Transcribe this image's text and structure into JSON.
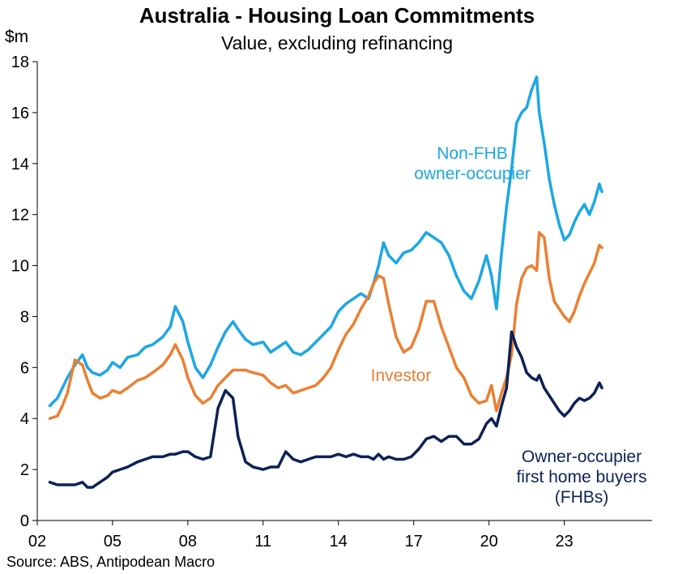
{
  "title": "Australia - Housing Loan Commitments",
  "subtitle": "Value, excluding refinancing",
  "unit_label": "$m",
  "source": "Source: ABS, Antipodean Macro",
  "chart_data": {
    "type": "line",
    "title": "Australia - Housing Loan Commitments",
    "subtitle": "Value, excluding refinancing",
    "ylabel": "$m",
    "ylim": [
      0,
      18
    ],
    "yticks": [
      "0",
      "2",
      "4",
      "6",
      "8",
      "10",
      "12",
      "14",
      "16",
      "18"
    ],
    "xlim": [
      2002.0,
      2026.5
    ],
    "xticks": [
      {
        "x": 2002,
        "label": "02"
      },
      {
        "x": 2005,
        "label": "05"
      },
      {
        "x": 2008,
        "label": "08"
      },
      {
        "x": 2011,
        "label": "11"
      },
      {
        "x": 2014,
        "label": "14"
      },
      {
        "x": 2017,
        "label": "17"
      },
      {
        "x": 2020,
        "label": "20"
      },
      {
        "x": 2023,
        "label": "23"
      }
    ],
    "grid": false,
    "legend": "none",
    "series": [
      {
        "name": "Non-FHB owner-occupier",
        "label_lines": [
          "Non-FHB",
          "owner-occupier"
        ],
        "color": "#1ca7e4",
        "x": [
          2002.5,
          2002.8,
          2003.0,
          2003.2,
          2003.5,
          2003.8,
          2004.0,
          2004.2,
          2004.5,
          2004.8,
          2005.0,
          2005.3,
          2005.6,
          2006.0,
          2006.3,
          2006.6,
          2007.0,
          2007.3,
          2007.5,
          2007.8,
          2008.0,
          2008.3,
          2008.6,
          2008.9,
          2009.2,
          2009.5,
          2009.8,
          2010.0,
          2010.3,
          2010.6,
          2011.0,
          2011.3,
          2011.6,
          2011.9,
          2012.2,
          2012.5,
          2012.8,
          2013.1,
          2013.4,
          2013.7,
          2014.0,
          2014.3,
          2014.6,
          2014.9,
          2015.2,
          2015.4,
          2015.6,
          2015.8,
          2016.0,
          2016.3,
          2016.6,
          2016.9,
          2017.2,
          2017.5,
          2017.8,
          2018.1,
          2018.4,
          2018.7,
          2019.0,
          2019.3,
          2019.6,
          2019.9,
          2020.1,
          2020.3,
          2020.5,
          2020.7,
          2020.9,
          2021.1,
          2021.3,
          2021.5,
          2021.7,
          2021.9,
          2022.0,
          2022.2,
          2022.4,
          2022.6,
          2022.8,
          2023.0,
          2023.2,
          2023.4,
          2023.6,
          2023.8,
          2024.0,
          2024.2,
          2024.4,
          2024.5
        ],
        "y": [
          4.5,
          4.8,
          5.2,
          5.6,
          6.1,
          6.5,
          6.0,
          5.8,
          5.7,
          5.9,
          6.2,
          6.0,
          6.4,
          6.5,
          6.8,
          6.9,
          7.2,
          7.6,
          8.4,
          7.8,
          7.0,
          6.0,
          5.6,
          6.1,
          6.8,
          7.4,
          7.8,
          7.5,
          7.1,
          6.9,
          7.0,
          6.6,
          6.8,
          7.0,
          6.6,
          6.5,
          6.7,
          7.0,
          7.3,
          7.6,
          8.2,
          8.5,
          8.7,
          8.9,
          8.7,
          9.3,
          10.0,
          10.9,
          10.4,
          10.1,
          10.5,
          10.6,
          10.9,
          11.3,
          11.1,
          10.9,
          10.4,
          9.6,
          9.0,
          8.7,
          9.4,
          10.4,
          9.6,
          8.3,
          10.5,
          12.3,
          13.8,
          15.6,
          16.0,
          16.2,
          16.9,
          17.4,
          16.0,
          14.8,
          13.4,
          12.4,
          11.6,
          11.0,
          11.2,
          11.7,
          12.1,
          12.4,
          12.0,
          12.5,
          13.2,
          12.9
        ]
      },
      {
        "name": "Investor",
        "label_lines": [
          "Investor"
        ],
        "color": "#ec7f31",
        "x": [
          2002.5,
          2002.8,
          2003.0,
          2003.2,
          2003.5,
          2003.8,
          2004.0,
          2004.2,
          2004.5,
          2004.8,
          2005.0,
          2005.3,
          2005.6,
          2006.0,
          2006.3,
          2006.6,
          2007.0,
          2007.3,
          2007.5,
          2007.8,
          2008.0,
          2008.3,
          2008.6,
          2008.9,
          2009.2,
          2009.5,
          2009.8,
          2010.0,
          2010.3,
          2010.6,
          2011.0,
          2011.3,
          2011.6,
          2011.9,
          2012.2,
          2012.5,
          2012.8,
          2013.1,
          2013.4,
          2013.7,
          2014.0,
          2014.3,
          2014.6,
          2014.9,
          2015.2,
          2015.4,
          2015.6,
          2015.8,
          2016.0,
          2016.3,
          2016.6,
          2016.9,
          2017.2,
          2017.5,
          2017.8,
          2018.1,
          2018.4,
          2018.7,
          2019.0,
          2019.3,
          2019.6,
          2019.9,
          2020.1,
          2020.3,
          2020.5,
          2020.7,
          2020.9,
          2021.1,
          2021.3,
          2021.5,
          2021.7,
          2021.9,
          2022.0,
          2022.2,
          2022.4,
          2022.6,
          2022.8,
          2023.0,
          2023.2,
          2023.4,
          2023.6,
          2023.8,
          2024.0,
          2024.2,
          2024.4,
          2024.5
        ],
        "y": [
          4.0,
          4.1,
          4.5,
          5.0,
          6.3,
          6.1,
          5.5,
          5.0,
          4.8,
          4.9,
          5.1,
          5.0,
          5.2,
          5.5,
          5.6,
          5.8,
          6.1,
          6.5,
          6.9,
          6.3,
          5.6,
          4.9,
          4.6,
          4.8,
          5.3,
          5.6,
          5.9,
          5.9,
          5.9,
          5.8,
          5.7,
          5.4,
          5.2,
          5.3,
          5.0,
          5.1,
          5.2,
          5.3,
          5.6,
          6.0,
          6.7,
          7.3,
          7.7,
          8.3,
          8.8,
          9.3,
          9.6,
          9.5,
          8.5,
          7.2,
          6.6,
          6.8,
          7.5,
          8.6,
          8.6,
          7.6,
          6.8,
          6.0,
          5.6,
          4.9,
          4.6,
          4.7,
          5.3,
          4.3,
          5.0,
          5.6,
          6.5,
          8.5,
          9.5,
          9.9,
          10.0,
          9.8,
          11.3,
          11.1,
          9.5,
          8.6,
          8.3,
          8.0,
          7.8,
          8.2,
          8.8,
          9.3,
          9.7,
          10.1,
          10.8,
          10.7
        ]
      },
      {
        "name": "Owner-occupier first home buyers (FHBs)",
        "label_lines": [
          "Owner-occupier",
          "first home buyers",
          "(FHBs)"
        ],
        "color": "#0c2157",
        "x": [
          2002.5,
          2002.8,
          2003.0,
          2003.2,
          2003.5,
          2003.8,
          2004.0,
          2004.2,
          2004.5,
          2004.8,
          2005.0,
          2005.3,
          2005.6,
          2006.0,
          2006.3,
          2006.6,
          2007.0,
          2007.3,
          2007.5,
          2007.8,
          2008.0,
          2008.3,
          2008.6,
          2008.9,
          2009.2,
          2009.5,
          2009.8,
          2010.0,
          2010.3,
          2010.6,
          2011.0,
          2011.3,
          2011.6,
          2011.9,
          2012.2,
          2012.5,
          2012.8,
          2013.1,
          2013.4,
          2013.7,
          2014.0,
          2014.3,
          2014.6,
          2014.9,
          2015.2,
          2015.4,
          2015.6,
          2015.8,
          2016.0,
          2016.3,
          2016.6,
          2016.9,
          2017.2,
          2017.5,
          2017.8,
          2018.1,
          2018.4,
          2018.7,
          2019.0,
          2019.3,
          2019.6,
          2019.9,
          2020.1,
          2020.3,
          2020.5,
          2020.7,
          2020.9,
          2021.1,
          2021.3,
          2021.5,
          2021.7,
          2021.9,
          2022.0,
          2022.2,
          2022.4,
          2022.6,
          2022.8,
          2023.0,
          2023.2,
          2023.4,
          2023.6,
          2023.8,
          2024.0,
          2024.2,
          2024.4,
          2024.5
        ],
        "y": [
          1.5,
          1.4,
          1.4,
          1.4,
          1.4,
          1.5,
          1.3,
          1.3,
          1.5,
          1.7,
          1.9,
          2.0,
          2.1,
          2.3,
          2.4,
          2.5,
          2.5,
          2.6,
          2.6,
          2.7,
          2.7,
          2.5,
          2.4,
          2.5,
          4.4,
          5.1,
          4.8,
          3.3,
          2.3,
          2.1,
          2.0,
          2.1,
          2.1,
          2.7,
          2.4,
          2.3,
          2.4,
          2.5,
          2.5,
          2.5,
          2.6,
          2.5,
          2.6,
          2.5,
          2.5,
          2.4,
          2.6,
          2.4,
          2.5,
          2.4,
          2.4,
          2.5,
          2.8,
          3.2,
          3.3,
          3.1,
          3.3,
          3.3,
          3.0,
          3.0,
          3.2,
          3.8,
          4.0,
          3.7,
          4.5,
          5.2,
          7.4,
          6.8,
          6.4,
          5.8,
          5.6,
          5.5,
          5.7,
          5.2,
          4.9,
          4.6,
          4.3,
          4.1,
          4.3,
          4.6,
          4.8,
          4.7,
          4.8,
          5.0,
          5.4,
          5.2
        ]
      }
    ]
  }
}
